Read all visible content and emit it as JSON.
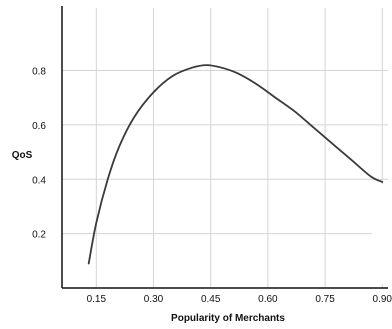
{
  "chart_data": {
    "type": "line",
    "title": "",
    "xlabel": "Popularity of Merchants",
    "ylabel": "QoS",
    "xlim": [
      0.06,
      0.915
    ],
    "ylim": [
      0.0,
      1.03
    ],
    "x_ticks": [
      0.15,
      0.3,
      0.45,
      0.6,
      0.75,
      0.9
    ],
    "x_tick_labels": [
      "0.15",
      "0.30",
      "0.45",
      "0.60",
      "0.75",
      "0.90"
    ],
    "y_ticks": [
      0.2,
      0.4,
      0.6,
      0.8
    ],
    "y_tick_labels": [
      "0.2",
      "0.4",
      "0.6",
      "0.8"
    ],
    "grid": true,
    "series": [
      {
        "color": "#3a3a3a",
        "x": [
          0.13,
          0.15,
          0.18,
          0.21,
          0.25,
          0.3,
          0.35,
          0.4,
          0.44,
          0.48,
          0.52,
          0.57,
          0.62,
          0.67,
          0.72,
          0.77,
          0.82,
          0.87,
          0.9
        ],
        "y": [
          0.09,
          0.24,
          0.4,
          0.52,
          0.63,
          0.72,
          0.78,
          0.81,
          0.82,
          0.81,
          0.79,
          0.75,
          0.7,
          0.65,
          0.59,
          0.53,
          0.47,
          0.41,
          0.39
        ]
      }
    ]
  }
}
